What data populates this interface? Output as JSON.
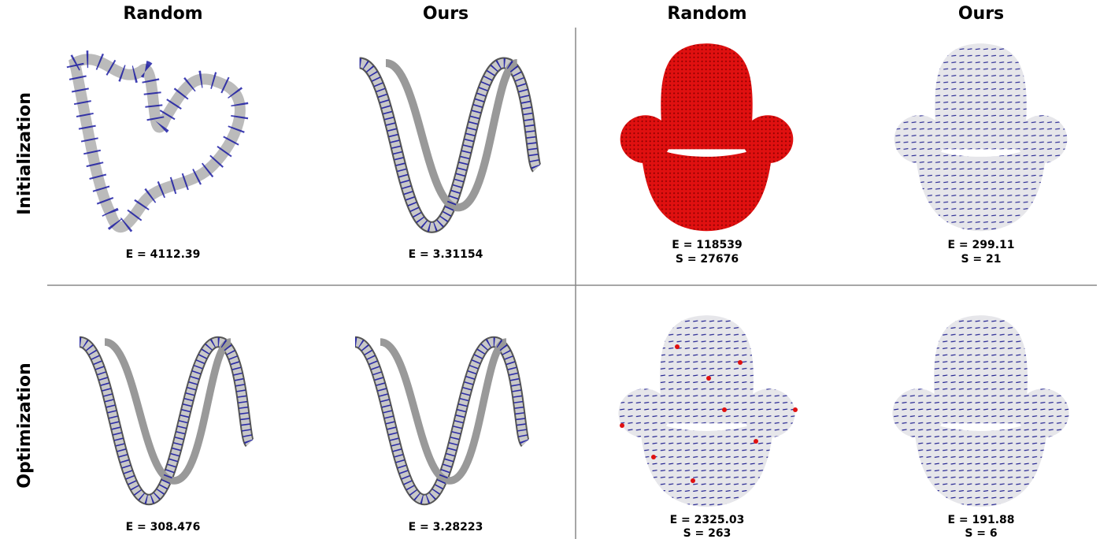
{
  "columns": [
    "Random",
    "Ours",
    "Random",
    "Ours"
  ],
  "rows": [
    {
      "label": "Initialization",
      "cells": [
        [
          "E = 4112.39"
        ],
        [
          "E = 3.31154"
        ],
        [
          "E = 118539",
          "S = 27676"
        ],
        [
          "E = 299.11",
          "S = 21"
        ]
      ]
    },
    {
      "label": "Optimization",
      "cells": [
        [
          "E = 308.476"
        ],
        [
          "E = 3.28223"
        ],
        [
          "E = 2325.03",
          "S = 263"
        ],
        [
          "E = 191.88",
          "S = 6"
        ]
      ]
    }
  ]
}
